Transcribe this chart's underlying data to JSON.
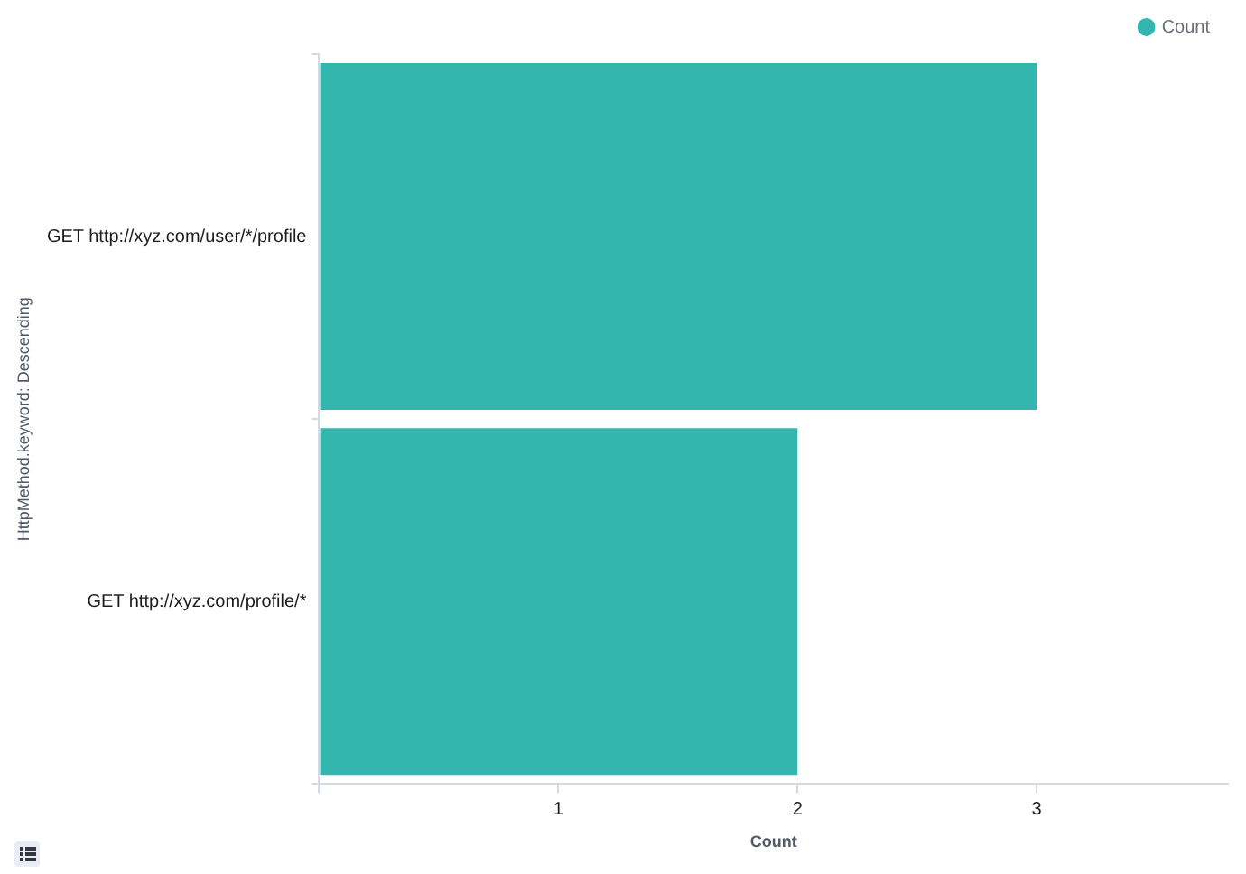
{
  "chart_data": {
    "type": "bar",
    "orientation": "horizontal",
    "categories": [
      "GET http://xyz.com/user/*/profile",
      "GET http://xyz.com/profile/*"
    ],
    "series": [
      {
        "name": "Count",
        "color": "#33b6ae",
        "values": [
          3,
          2
        ]
      }
    ],
    "xlabel": "Count",
    "ylabel": "HttpMethod.keyword: Descending",
    "xlim": [
      0,
      3.8
    ],
    "xticks": [
      {
        "value": 0,
        "label": null
      },
      1,
      2,
      3
    ],
    "legend": "top right"
  }
}
